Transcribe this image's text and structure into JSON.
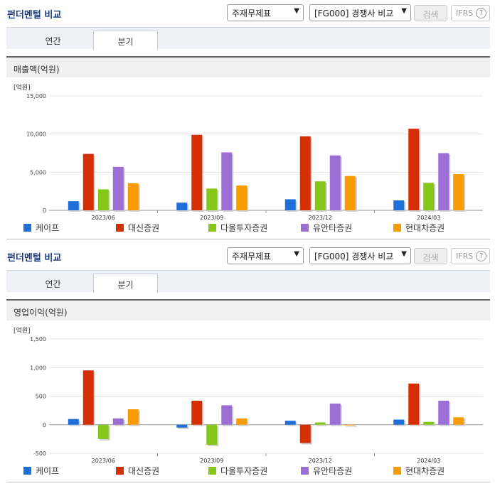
{
  "panels": [
    {
      "title": "펀더멘털 비교",
      "select_statement": "주재무제표",
      "select_compare": "[FG000] 경쟁사 비교",
      "search_label": "검색",
      "ifrs_label": "IFRS",
      "tabs": [
        "연간",
        "분기"
      ],
      "active_tab": 1,
      "metric_label": "매출액(억원)",
      "unit_label": "[억원]"
    },
    {
      "title": "펀더멘털 비교",
      "select_statement": "주재무제표",
      "select_compare": "[FG000] 경쟁사 비교",
      "search_label": "검색",
      "ifrs_label": "IFRS",
      "tabs": [
        "연간",
        "분기"
      ],
      "active_tab": 1,
      "metric_label": "영업이익(억원)",
      "unit_label": "[억원]"
    }
  ],
  "chart_data": [
    {
      "type": "bar",
      "categories": [
        "2023/06",
        "2023/09",
        "2023/12",
        "2024/03"
      ],
      "ylim": [
        0,
        15000
      ],
      "yticks": [
        0,
        5000,
        10000,
        15000
      ],
      "ytick_labels": [
        "0",
        "5,000",
        "10,000",
        "15,000"
      ],
      "ylabel": "[억원]",
      "legend_position": "bottom",
      "series": [
        {
          "name": "케이프",
          "color": "#1e6fd9",
          "values": [
            1200,
            1000,
            1450,
            1300
          ]
        },
        {
          "name": "대신증권",
          "color": "#d62f05",
          "values": [
            7400,
            9900,
            9700,
            10700
          ]
        },
        {
          "name": "다올투자증권",
          "color": "#84c718",
          "values": [
            2750,
            2850,
            3800,
            3600
          ]
        },
        {
          "name": "유안타증권",
          "color": "#9b6fd6",
          "values": [
            5700,
            7600,
            7200,
            7500
          ]
        },
        {
          "name": "현대차증권",
          "color": "#f79c05",
          "values": [
            3550,
            3250,
            4500,
            4750
          ]
        }
      ]
    },
    {
      "type": "bar",
      "categories": [
        "2023/06",
        "2023/09",
        "2023/12",
        "2024/03"
      ],
      "ylim": [
        -500,
        1500
      ],
      "yticks": [
        -500,
        0,
        500,
        1000,
        1500
      ],
      "ytick_labels": [
        "-500",
        "0",
        "500",
        "1,000",
        "1,500"
      ],
      "ylabel": "[억원]",
      "legend_position": "bottom",
      "series": [
        {
          "name": "케이프",
          "color": "#1e6fd9",
          "values": [
            100,
            -50,
            70,
            90
          ]
        },
        {
          "name": "대신증권",
          "color": "#d62f05",
          "values": [
            950,
            420,
            -320,
            720
          ]
        },
        {
          "name": "다올투자증권",
          "color": "#84c718",
          "values": [
            -250,
            -350,
            40,
            50
          ]
        },
        {
          "name": "유안타증권",
          "color": "#9b6fd6",
          "values": [
            110,
            340,
            370,
            420
          ]
        },
        {
          "name": "현대차증권",
          "color": "#f79c05",
          "values": [
            270,
            110,
            -10,
            130
          ]
        }
      ]
    }
  ]
}
